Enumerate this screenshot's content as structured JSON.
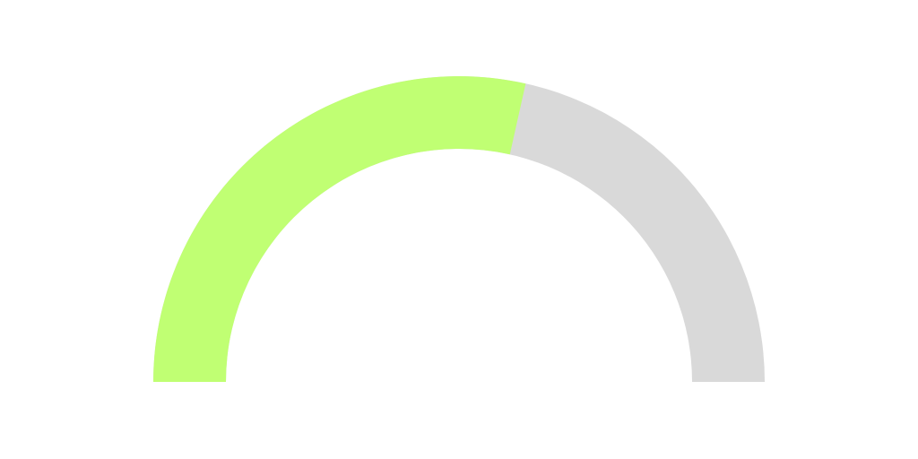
{
  "chart_data": {
    "type": "gauge",
    "value": 57,
    "range": [
      0,
      100
    ],
    "color": "#c0ff73",
    "track_color": "#d9d9d9"
  }
}
